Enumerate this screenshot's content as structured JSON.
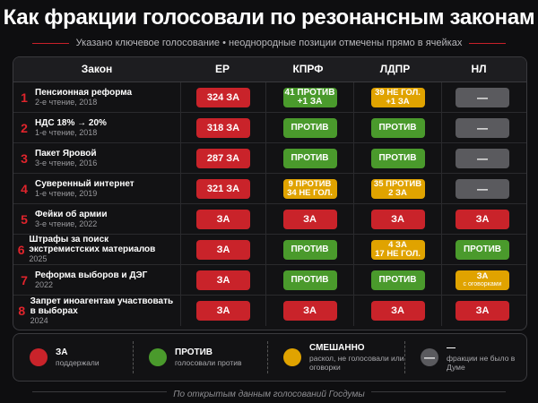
{
  "title": "Как фракции голосовали по резонансным законам",
  "subtitle": "Указано ключевое голосование • неоднородные позиции отмечены прямо в ячейках",
  "columns": [
    "Закон",
    "ЕР",
    "КПРФ",
    "ЛДПР",
    "НЛ"
  ],
  "colors": {
    "za": "#c9232a",
    "protiv": "#4a9a2c",
    "mixed": "#e0a300",
    "none": "#5a5a5e",
    "accent": "#e0242c"
  },
  "rows": [
    {
      "num": "1",
      "name": "Пенсионная реформа",
      "sub": "2-е чтение, 2018",
      "votes": [
        {
          "type": "za",
          "l1": "324 ЗА",
          "l2": ""
        },
        {
          "type": "protiv",
          "l1": "41 ПРОТИВ",
          "l2": "+1 ЗА"
        },
        {
          "type": "mixed",
          "l1": "39 НЕ ГОЛ.",
          "l2": "+1 ЗА"
        },
        {
          "type": "none",
          "l1": "—",
          "l2": ""
        }
      ]
    },
    {
      "num": "2",
      "name": "НДС 18% → 20%",
      "sub": "1-е чтение, 2018",
      "votes": [
        {
          "type": "za",
          "l1": "318 ЗА",
          "l2": ""
        },
        {
          "type": "protiv",
          "l1": "ПРОТИВ",
          "l2": ""
        },
        {
          "type": "protiv",
          "l1": "ПРОТИВ",
          "l2": ""
        },
        {
          "type": "none",
          "l1": "—",
          "l2": ""
        }
      ]
    },
    {
      "num": "3",
      "name": "Пакет Яровой",
      "sub": "3-е чтение, 2016",
      "votes": [
        {
          "type": "za",
          "l1": "287 ЗА",
          "l2": ""
        },
        {
          "type": "protiv",
          "l1": "ПРОТИВ",
          "l2": ""
        },
        {
          "type": "protiv",
          "l1": "ПРОТИВ",
          "l2": ""
        },
        {
          "type": "none",
          "l1": "—",
          "l2": ""
        }
      ]
    },
    {
      "num": "4",
      "name": "Суверенный интернет",
      "sub": "1-е чтение, 2019",
      "votes": [
        {
          "type": "za",
          "l1": "321 ЗА",
          "l2": ""
        },
        {
          "type": "mixed",
          "l1": "9 ПРОТИВ",
          "l2": "34 НЕ ГОЛ."
        },
        {
          "type": "mixed",
          "l1": "35 ПРОТИВ",
          "l2": "2 ЗА"
        },
        {
          "type": "none",
          "l1": "—",
          "l2": ""
        }
      ]
    },
    {
      "num": "5",
      "name": "Фейки об армии",
      "sub": "3-е чтение, 2022",
      "votes": [
        {
          "type": "za",
          "l1": "ЗА",
          "l2": ""
        },
        {
          "type": "za",
          "l1": "ЗА",
          "l2": ""
        },
        {
          "type": "za",
          "l1": "ЗА",
          "l2": ""
        },
        {
          "type": "za",
          "l1": "ЗА",
          "l2": ""
        }
      ]
    },
    {
      "num": "6",
      "name": "Штрафы за поиск экстремистских материалов",
      "sub": "2025",
      "votes": [
        {
          "type": "za",
          "l1": "ЗА",
          "l2": ""
        },
        {
          "type": "protiv",
          "l1": "ПРОТИВ",
          "l2": ""
        },
        {
          "type": "mixed",
          "l1": "4 ЗА",
          "l2": "17 НЕ ГОЛ."
        },
        {
          "type": "protiv",
          "l1": "ПРОТИВ",
          "l2": ""
        }
      ]
    },
    {
      "num": "7",
      "name": "Реформа выборов и ДЭГ",
      "sub": "2022",
      "votes": [
        {
          "type": "za",
          "l1": "ЗА",
          "l2": ""
        },
        {
          "type": "protiv",
          "l1": "ПРОТИВ",
          "l2": ""
        },
        {
          "type": "protiv",
          "l1": "ПРОТИВ",
          "l2": ""
        },
        {
          "type": "mixed",
          "l1": "ЗА",
          "l2": "с оговорками"
        }
      ]
    },
    {
      "num": "8",
      "name": "Запрет иноагентам участвовать в выборах",
      "sub": "2024",
      "votes": [
        {
          "type": "za",
          "l1": "ЗА",
          "l2": ""
        },
        {
          "type": "za",
          "l1": "ЗА",
          "l2": ""
        },
        {
          "type": "za",
          "l1": "ЗА",
          "l2": ""
        },
        {
          "type": "za",
          "l1": "ЗА",
          "l2": ""
        }
      ]
    }
  ],
  "legend": [
    {
      "type": "za",
      "title": "ЗА",
      "desc": "поддержали",
      "symbol": ""
    },
    {
      "type": "protiv",
      "title": "ПРОТИВ",
      "desc": "голосовали против",
      "symbol": ""
    },
    {
      "type": "mixed",
      "title": "СМЕШАННО",
      "desc": "раскол, не голосовали или оговорки",
      "symbol": ""
    },
    {
      "type": "none",
      "title": "—",
      "desc": "фракции не было в Думе",
      "symbol": "—"
    }
  ],
  "footer": "По открытым данным голосований Госдумы"
}
